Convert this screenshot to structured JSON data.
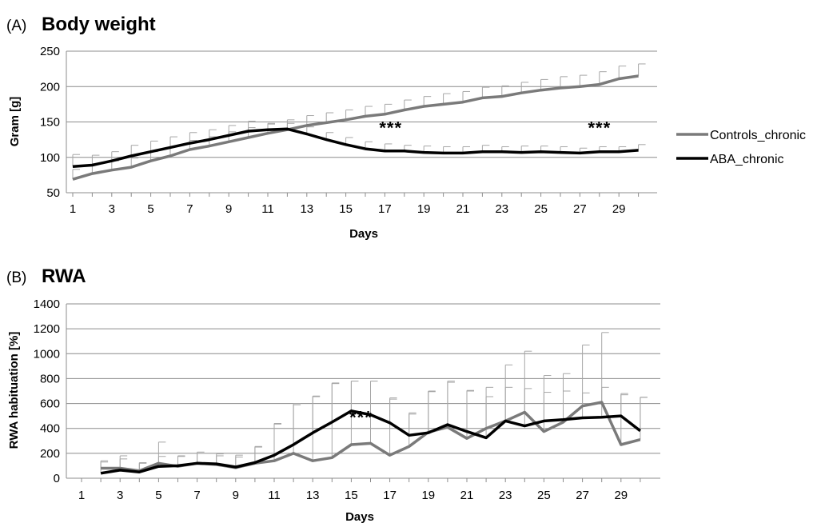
{
  "colors": {
    "controls": "#7a7a7a",
    "aba": "#000000",
    "grid": "#8c8c8c",
    "error": "#a6a6a6"
  },
  "chart_data": [
    {
      "type": "line",
      "panel_label": "(A)",
      "title": "Body weight",
      "xlabel": "Days",
      "ylabel": "Gram [g]",
      "xlim": [
        1,
        30
      ],
      "ylim": [
        50,
        250
      ],
      "yticks": [
        50,
        100,
        150,
        200,
        250
      ],
      "xticks": [
        1,
        3,
        5,
        7,
        9,
        11,
        13,
        15,
        17,
        19,
        21,
        23,
        25,
        27,
        29
      ],
      "grid": true,
      "legend_position": "right",
      "x": [
        1,
        2,
        3,
        4,
        5,
        6,
        7,
        8,
        9,
        10,
        11,
        12,
        13,
        14,
        15,
        16,
        17,
        18,
        19,
        20,
        21,
        22,
        23,
        24,
        25,
        26,
        27,
        28,
        29,
        30
      ],
      "series": [
        {
          "name": "Controls_chronic",
          "color_key": "controls",
          "values": [
            69,
            77,
            82,
            86,
            95,
            102,
            111,
            116,
            122,
            128,
            134,
            139,
            145,
            149,
            153,
            158,
            161,
            167,
            172,
            175,
            178,
            184,
            186,
            191,
            195,
            198,
            200,
            203,
            211,
            215
          ],
          "error": [
            14,
            14,
            13,
            13,
            13,
            13,
            13,
            13,
            14,
            14,
            14,
            14,
            14,
            14,
            14,
            14,
            14,
            14,
            14,
            15,
            15,
            15,
            15,
            15,
            15,
            16,
            16,
            18,
            18,
            17
          ]
        },
        {
          "name": "ABA_chronic",
          "color_key": "aba",
          "values": [
            87,
            89,
            95,
            102,
            108,
            114,
            120,
            125,
            131,
            137,
            139,
            140,
            133,
            125,
            118,
            112,
            109,
            109,
            107,
            106,
            106,
            108,
            108,
            107,
            108,
            107,
            106,
            108,
            108,
            110
          ],
          "error": [
            17,
            14,
            13,
            15,
            15,
            15,
            15,
            14,
            14,
            14,
            8,
            8,
            10,
            10,
            10,
            10,
            10,
            8,
            9,
            9,
            9,
            9,
            7,
            9,
            8,
            8,
            7,
            7,
            7,
            8
          ]
        }
      ],
      "annotations": [
        {
          "text": "***",
          "x": 17.3,
          "y": 133
        },
        {
          "text": "***",
          "x": 28.0,
          "y": 133
        }
      ]
    },
    {
      "type": "line",
      "panel_label": "(B)",
      "title": "RWA",
      "xlabel": "Days",
      "ylabel": "RWA habituation [%]",
      "xlim": [
        1,
        30
      ],
      "ylim": [
        0,
        1400
      ],
      "yticks": [
        0,
        200,
        400,
        600,
        800,
        1000,
        1200,
        1400
      ],
      "xticks": [
        1,
        3,
        5,
        7,
        9,
        11,
        13,
        15,
        17,
        19,
        21,
        23,
        25,
        27,
        29
      ],
      "grid": true,
      "x": [
        2,
        3,
        4,
        5,
        6,
        7,
        8,
        9,
        10,
        11,
        12,
        13,
        14,
        15,
        16,
        17,
        18,
        19,
        20,
        21,
        22,
        23,
        24,
        25,
        26,
        27,
        28,
        29,
        30
      ],
      "series": [
        {
          "name": "Controls_chronic",
          "color_key": "controls",
          "values": [
            80,
            80,
            60,
            120,
            95,
            120,
            110,
            85,
            120,
            140,
            200,
            140,
            165,
            270,
            280,
            185,
            255,
            370,
            410,
            320,
            400,
            460,
            530,
            375,
            450,
            580,
            610,
            270,
            310
          ],
          "error": [
            50,
            100,
            60,
            170,
            80,
            90,
            70,
            100,
            130,
            300,
            400,
            520,
            600,
            510,
            500,
            460,
            270,
            330,
            370,
            380,
            330,
            450,
            490,
            450,
            390,
            490,
            560,
            400,
            340
          ]
        },
        {
          "name": "ABA_chronic",
          "color_key": "aba",
          "values": [
            40,
            65,
            50,
            95,
            100,
            120,
            115,
            90,
            125,
            185,
            270,
            365,
            450,
            540,
            510,
            445,
            345,
            365,
            430,
            375,
            325,
            460,
            420,
            460,
            470,
            485,
            490,
            500,
            380
          ],
          "error": [
            100,
            90,
            75,
            80,
            80,
            80,
            80,
            80,
            130,
            250,
            320,
            290,
            310,
            240,
            270,
            190,
            170,
            330,
            340,
            330,
            330,
            270,
            300,
            230,
            230,
            200,
            240,
            180,
            270
          ]
        }
      ],
      "annotations": [
        {
          "text": "***",
          "x": 15.5,
          "y": 440
        }
      ]
    }
  ]
}
